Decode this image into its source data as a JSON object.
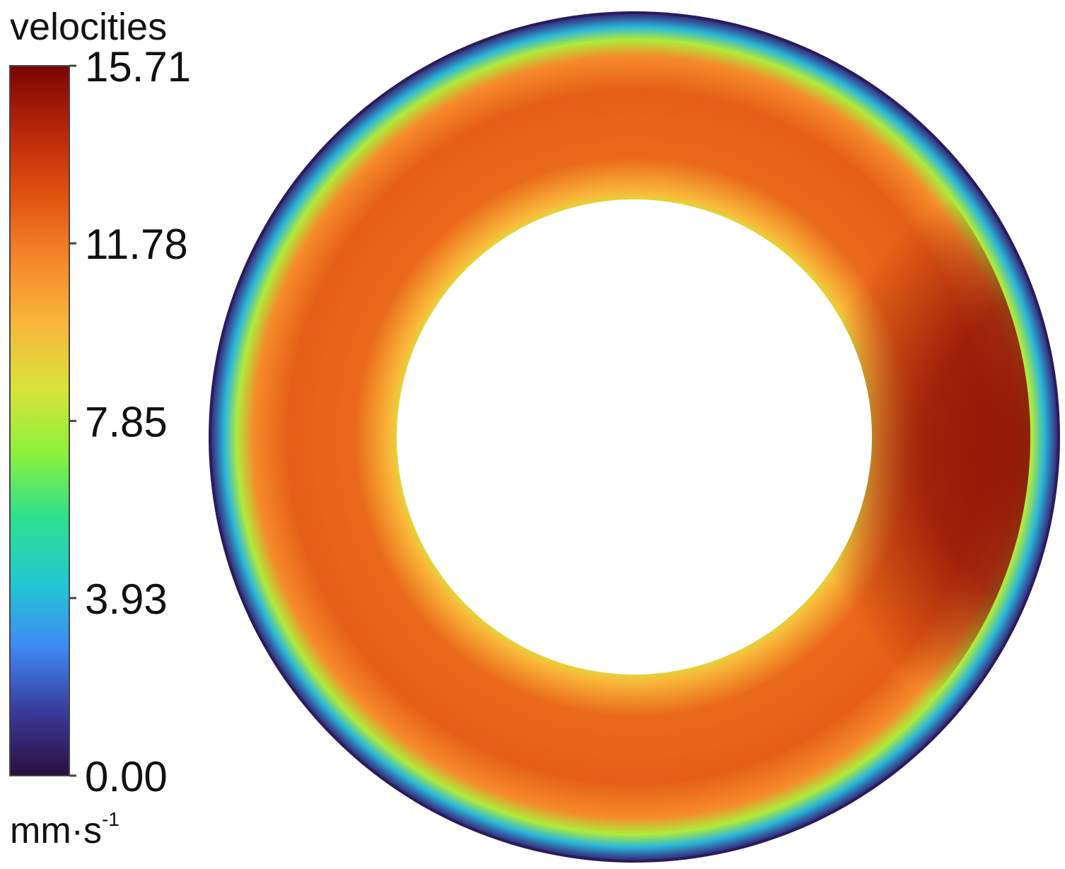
{
  "chart_data": {
    "type": "heatmap",
    "subtype": "annular-contour-plot",
    "colorbar": {
      "title": "velocities",
      "unit_base": "mm·s",
      "unit_exponent": "-1",
      "ticks": [
        "15.71",
        "11.78",
        "7.85",
        "3.93",
        "0.00"
      ],
      "min": 0.0,
      "max": 15.71,
      "colormap": [
        "#2a0f3e",
        "#3a3b9c",
        "#3e8af5",
        "#22c8d0",
        "#2ee08f",
        "#8cf13b",
        "#d8e33a",
        "#f9b73a",
        "#f6862a",
        "#e0520f",
        "#b8260a",
        "#7a0403"
      ]
    },
    "field": {
      "hole_color": "#ffffff",
      "radial_profile": [
        {
          "r": 1.0,
          "value": 1.0
        },
        {
          "r": 0.97,
          "value": 3.9
        },
        {
          "r": 0.94,
          "value": 7.8
        },
        {
          "r": 0.9,
          "value": 11.3
        },
        {
          "r": 0.82,
          "value": 12.5
        },
        {
          "r": 0.66,
          "value": 12.2
        },
        {
          "r": 0.58,
          "value": 10.0
        },
        {
          "r": 0.56,
          "value": 9.0
        }
      ],
      "peak_region": {
        "location": "right side",
        "value": 15.4
      }
    }
  }
}
